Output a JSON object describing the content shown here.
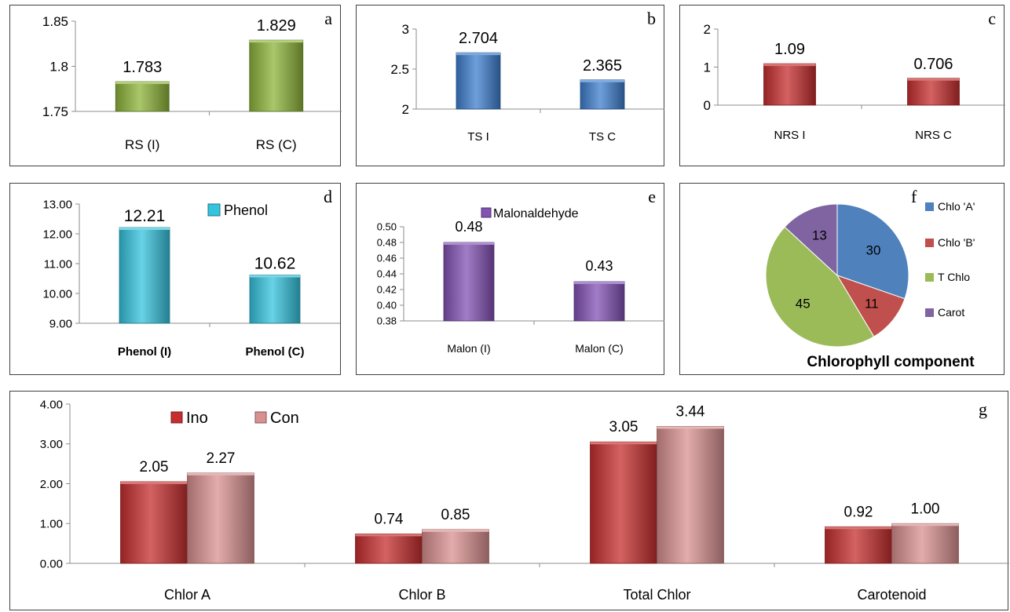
{
  "colors": {
    "green": "#8db43a",
    "blue": "#3f7fcf",
    "red": "#c62e2e",
    "cyan": "#35c3dd",
    "purple": "#8352b4",
    "pink": "#d99090",
    "pie_blue": "#4f81bd",
    "pie_red": "#c0504d",
    "pie_green": "#9bbb59",
    "pie_purple": "#8064a2"
  },
  "chart_data": [
    {
      "id": "a",
      "panel_letter": "a",
      "type": "bar",
      "categories": [
        "RS (I)",
        "RS (C)"
      ],
      "values": [
        1.783,
        1.829
      ],
      "value_labels": [
        "1.783",
        "1.829"
      ],
      "ylim": [
        1.75,
        1.85
      ],
      "yticks": [
        1.75,
        1.8,
        1.85
      ],
      "ytick_labels": [
        "1.75",
        "1.8",
        "1.85"
      ],
      "grid": false,
      "color_key": "green"
    },
    {
      "id": "b",
      "panel_letter": "b",
      "type": "bar",
      "categories": [
        "TS I",
        "TS C"
      ],
      "values": [
        2.704,
        2.365
      ],
      "value_labels": [
        "2.704",
        "2.365"
      ],
      "ylim": [
        2,
        3
      ],
      "yticks": [
        2,
        2.5,
        3
      ],
      "ytick_labels": [
        "2",
        "2.5",
        "3"
      ],
      "grid": false,
      "color_key": "blue"
    },
    {
      "id": "c",
      "panel_letter": "c",
      "type": "bar",
      "categories": [
        "NRS I",
        "NRS C"
      ],
      "values": [
        1.09,
        0.706
      ],
      "value_labels": [
        "1.09",
        "0.706"
      ],
      "ylim": [
        0,
        2
      ],
      "yticks": [
        0,
        1,
        2
      ],
      "ytick_labels": [
        "0",
        "1",
        "2"
      ],
      "grid": false,
      "color_key": "red"
    },
    {
      "id": "d",
      "panel_letter": "d",
      "type": "bar",
      "categories": [
        "Phenol (I)",
        "Phenol (C)"
      ],
      "values": [
        12.21,
        10.62
      ],
      "value_labels": [
        "12.21",
        "10.62"
      ],
      "ylim": [
        9,
        13
      ],
      "yticks": [
        9,
        10,
        11,
        12,
        13
      ],
      "ytick_labels": [
        "9.00",
        "10.00",
        "11.00",
        "12.00",
        "13.00"
      ],
      "legend": "Phenol",
      "legend_position": "top-right",
      "grid": false,
      "color_key": "cyan"
    },
    {
      "id": "e",
      "panel_letter": "e",
      "type": "bar",
      "categories": [
        "Malon (I)",
        "Malon (C)"
      ],
      "values": [
        0.48,
        0.43
      ],
      "value_labels": [
        "0.48",
        "0.43"
      ],
      "ylim": [
        0.38,
        0.5
      ],
      "yticks": [
        0.38,
        0.4,
        0.42,
        0.44,
        0.46,
        0.48,
        0.5
      ],
      "ytick_labels": [
        "0.38",
        "0.40",
        "0.42",
        "0.44",
        "0.46",
        "0.48",
        "0.50"
      ],
      "legend": "Malonaldehyde",
      "legend_position": "top-right",
      "grid": false,
      "color_key": "purple"
    },
    {
      "id": "f",
      "panel_letter": "f",
      "type": "pie",
      "title": "Chlorophyll component",
      "labels": [
        "Chlo 'A'",
        "Chlo 'B'",
        "T Chlo",
        "Carot"
      ],
      "values": [
        30,
        11,
        45,
        13
      ],
      "value_labels": [
        "30",
        "11",
        "45",
        "13"
      ],
      "legend_position": "right",
      "color_keys": [
        "pie_blue",
        "pie_red",
        "pie_green",
        "pie_purple"
      ]
    },
    {
      "id": "g",
      "panel_letter": "g",
      "type": "bar",
      "categories": [
        "Chlor A",
        "Chlor B",
        "Total Chlor",
        "Carotenoid"
      ],
      "series": [
        {
          "name": "Ino",
          "values": [
            2.05,
            0.74,
            3.05,
            0.92
          ],
          "value_labels": [
            "2.05",
            "0.74",
            "3.05",
            "0.92"
          ],
          "color_key": "red"
        },
        {
          "name": "Con",
          "values": [
            2.27,
            0.85,
            3.44,
            1.0
          ],
          "value_labels": [
            "2.27",
            "0.85",
            "3.44",
            "1.00"
          ],
          "color_key": "pink"
        }
      ],
      "ylim": [
        0,
        4
      ],
      "yticks": [
        0,
        1,
        2,
        3,
        4
      ],
      "ytick_labels": [
        "0.00",
        "1.00",
        "2.00",
        "3.00",
        "4.00"
      ],
      "legend_position": "top-left",
      "grid": false
    }
  ]
}
